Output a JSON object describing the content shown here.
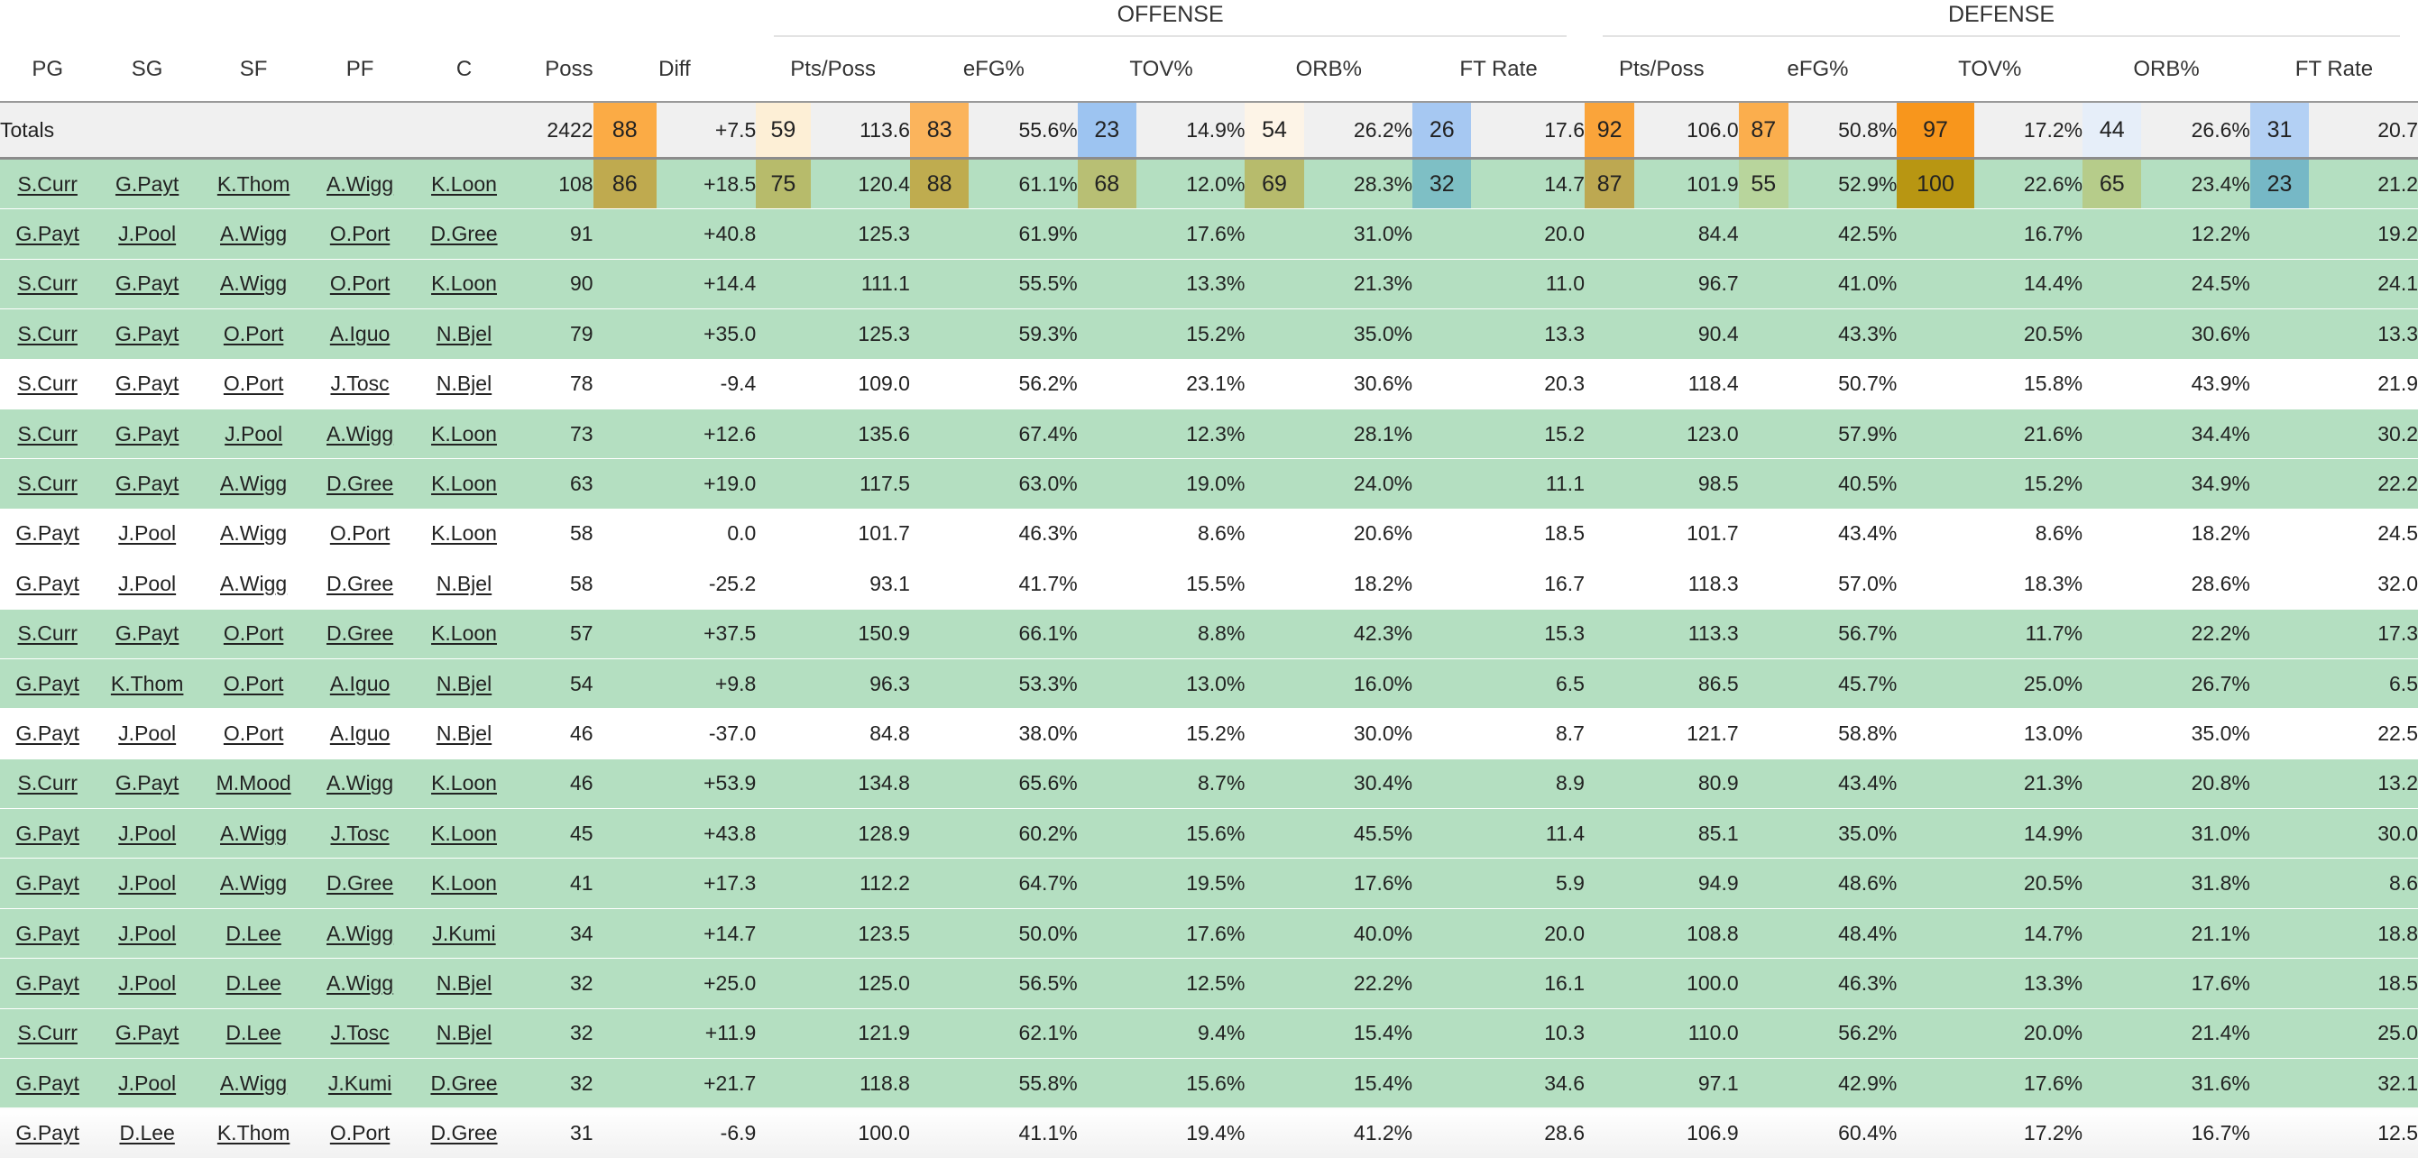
{
  "groups": {
    "offense": "OFFENSE",
    "defense": "DEFENSE"
  },
  "headers": {
    "pg": "PG",
    "sg": "SG",
    "sf": "SF",
    "pf": "PF",
    "c": "C",
    "poss": "Poss",
    "diff": "Diff",
    "off_pts": "Pts/Poss",
    "off_efg": "eFG%",
    "off_tov": "TOV%",
    "off_orb": "ORB%",
    "off_ft": "FT Rate",
    "def_pts": "Pts/Poss",
    "def_efg": "eFG%",
    "def_tov": "TOV%",
    "def_orb": "ORB%",
    "def_ft": "FT Rate"
  },
  "totals": {
    "label": "Totals",
    "poss": "2422",
    "diff_pct": "88",
    "diff": "+7.5",
    "offense": [
      {
        "pct": "59",
        "val": "113.6",
        "color": "#fdefd6"
      },
      {
        "pct": "83",
        "val": "55.6%",
        "color": "#fbb45c"
      },
      {
        "pct": "23",
        "val": "14.9%",
        "color": "#9dc4f1"
      },
      {
        "pct": "54",
        "val": "26.2%",
        "color": "#fdf4e7"
      },
      {
        "pct": "26",
        "val": "17.6",
        "color": "#a6c8f2"
      }
    ],
    "defense": [
      {
        "pct": "92",
        "val": "106.0",
        "color": "#faa43a"
      },
      {
        "pct": "87",
        "val": "50.8%",
        "color": "#fbae4d"
      },
      {
        "pct": "97",
        "val": "17.2%",
        "color": "#f8961c"
      },
      {
        "pct": "44",
        "val": "26.6%",
        "color": "#e6eef9"
      },
      {
        "pct": "31",
        "val": "20.7",
        "color": "#b3d0f4"
      }
    ]
  },
  "colors": {
    "diff_total": "#fbab45",
    "positive_row": "#b4dfc1",
    "neutral_row": "#ffffff",
    "top_diff": "#bfaa4f",
    "top_offense": [
      "#b7bb6b",
      "#bfac4f",
      "#b8bf74",
      "#b7bb6c",
      "#7ebfc5"
    ],
    "top_defense": [
      "#bda851",
      "#b8d59c",
      "#b89612",
      "#b6cc8a",
      "#76b8c6"
    ]
  },
  "rows": [
    {
      "players": [
        "S.Curr",
        "G.Payt",
        "K.Thom",
        "A.Wigg",
        "K.Loon"
      ],
      "poss": "108",
      "diff_pct": "86",
      "diff": "+18.5",
      "positive": true,
      "off_pct": [
        "75",
        "88",
        "68",
        "69",
        "32"
      ],
      "off": [
        "120.4",
        "61.1%",
        "12.0%",
        "28.3%",
        "14.7"
      ],
      "def_pct": [
        "87",
        "55",
        "100",
        "65",
        "23"
      ],
      "def": [
        "101.9",
        "52.9%",
        "22.6%",
        "23.4%",
        "21.2"
      ]
    },
    {
      "players": [
        "G.Payt",
        "J.Pool",
        "A.Wigg",
        "O.Port",
        "D.Gree"
      ],
      "poss": "91",
      "diff": "+40.8",
      "positive": true,
      "off": [
        "125.3",
        "61.9%",
        "17.6%",
        "31.0%",
        "20.0"
      ],
      "def": [
        "84.4",
        "42.5%",
        "16.7%",
        "12.2%",
        "19.2"
      ]
    },
    {
      "players": [
        "S.Curr",
        "G.Payt",
        "A.Wigg",
        "O.Port",
        "K.Loon"
      ],
      "poss": "90",
      "diff": "+14.4",
      "positive": true,
      "off": [
        "111.1",
        "55.5%",
        "13.3%",
        "21.3%",
        "11.0"
      ],
      "def": [
        "96.7",
        "41.0%",
        "14.4%",
        "24.5%",
        "24.1"
      ]
    },
    {
      "players": [
        "S.Curr",
        "G.Payt",
        "O.Port",
        "A.Iguo",
        "N.Bjel"
      ],
      "poss": "79",
      "diff": "+35.0",
      "positive": true,
      "off": [
        "125.3",
        "59.3%",
        "15.2%",
        "35.0%",
        "13.3"
      ],
      "def": [
        "90.4",
        "43.3%",
        "20.5%",
        "30.6%",
        "13.3"
      ]
    },
    {
      "players": [
        "S.Curr",
        "G.Payt",
        "O.Port",
        "J.Tosc",
        "N.Bjel"
      ],
      "poss": "78",
      "diff": "-9.4",
      "positive": false,
      "off": [
        "109.0",
        "56.2%",
        "23.1%",
        "30.6%",
        "20.3"
      ],
      "def": [
        "118.4",
        "50.7%",
        "15.8%",
        "43.9%",
        "21.9"
      ]
    },
    {
      "players": [
        "S.Curr",
        "G.Payt",
        "J.Pool",
        "A.Wigg",
        "K.Loon"
      ],
      "poss": "73",
      "diff": "+12.6",
      "positive": true,
      "off": [
        "135.6",
        "67.4%",
        "12.3%",
        "28.1%",
        "15.2"
      ],
      "def": [
        "123.0",
        "57.9%",
        "21.6%",
        "34.4%",
        "30.2"
      ]
    },
    {
      "players": [
        "S.Curr",
        "G.Payt",
        "A.Wigg",
        "D.Gree",
        "K.Loon"
      ],
      "poss": "63",
      "diff": "+19.0",
      "positive": true,
      "off": [
        "117.5",
        "63.0%",
        "19.0%",
        "24.0%",
        "11.1"
      ],
      "def": [
        "98.5",
        "40.5%",
        "15.2%",
        "34.9%",
        "22.2"
      ]
    },
    {
      "players": [
        "G.Payt",
        "J.Pool",
        "A.Wigg",
        "O.Port",
        "K.Loon"
      ],
      "poss": "58",
      "diff": "0.0",
      "positive": false,
      "off": [
        "101.7",
        "46.3%",
        "8.6%",
        "20.6%",
        "18.5"
      ],
      "def": [
        "101.7",
        "43.4%",
        "8.6%",
        "18.2%",
        "24.5"
      ]
    },
    {
      "players": [
        "G.Payt",
        "J.Pool",
        "A.Wigg",
        "D.Gree",
        "N.Bjel"
      ],
      "poss": "58",
      "diff": "-25.2",
      "positive": false,
      "off": [
        "93.1",
        "41.7%",
        "15.5%",
        "18.2%",
        "16.7"
      ],
      "def": [
        "118.3",
        "57.0%",
        "18.3%",
        "28.6%",
        "32.0"
      ]
    },
    {
      "players": [
        "S.Curr",
        "G.Payt",
        "O.Port",
        "D.Gree",
        "K.Loon"
      ],
      "poss": "57",
      "diff": "+37.5",
      "positive": true,
      "off": [
        "150.9",
        "66.1%",
        "8.8%",
        "42.3%",
        "15.3"
      ],
      "def": [
        "113.3",
        "56.7%",
        "11.7%",
        "22.2%",
        "17.3"
      ]
    },
    {
      "players": [
        "G.Payt",
        "K.Thom",
        "O.Port",
        "A.Iguo",
        "N.Bjel"
      ],
      "poss": "54",
      "diff": "+9.8",
      "positive": true,
      "off": [
        "96.3",
        "53.3%",
        "13.0%",
        "16.0%",
        "6.5"
      ],
      "def": [
        "86.5",
        "45.7%",
        "25.0%",
        "26.7%",
        "6.5"
      ]
    },
    {
      "players": [
        "G.Payt",
        "J.Pool",
        "O.Port",
        "A.Iguo",
        "N.Bjel"
      ],
      "poss": "46",
      "diff": "-37.0",
      "positive": false,
      "off": [
        "84.8",
        "38.0%",
        "15.2%",
        "30.0%",
        "8.7"
      ],
      "def": [
        "121.7",
        "58.8%",
        "13.0%",
        "35.0%",
        "22.5"
      ]
    },
    {
      "players": [
        "S.Curr",
        "G.Payt",
        "M.Mood",
        "A.Wigg",
        "K.Loon"
      ],
      "poss": "46",
      "diff": "+53.9",
      "positive": true,
      "off": [
        "134.8",
        "65.6%",
        "8.7%",
        "30.4%",
        "8.9"
      ],
      "def": [
        "80.9",
        "43.4%",
        "21.3%",
        "20.8%",
        "13.2"
      ]
    },
    {
      "players": [
        "G.Payt",
        "J.Pool",
        "A.Wigg",
        "J.Tosc",
        "K.Loon"
      ],
      "poss": "45",
      "diff": "+43.8",
      "positive": true,
      "off": [
        "128.9",
        "60.2%",
        "15.6%",
        "45.5%",
        "11.4"
      ],
      "def": [
        "85.1",
        "35.0%",
        "14.9%",
        "31.0%",
        "30.0"
      ]
    },
    {
      "players": [
        "G.Payt",
        "J.Pool",
        "A.Wigg",
        "D.Gree",
        "K.Loon"
      ],
      "poss": "41",
      "diff": "+17.3",
      "positive": true,
      "off": [
        "112.2",
        "64.7%",
        "19.5%",
        "17.6%",
        "5.9"
      ],
      "def": [
        "94.9",
        "48.6%",
        "20.5%",
        "31.8%",
        "8.6"
      ]
    },
    {
      "players": [
        "G.Payt",
        "J.Pool",
        "D.Lee",
        "A.Wigg",
        "J.Kumi"
      ],
      "poss": "34",
      "diff": "+14.7",
      "positive": true,
      "off": [
        "123.5",
        "50.0%",
        "17.6%",
        "40.0%",
        "20.0"
      ],
      "def": [
        "108.8",
        "48.4%",
        "14.7%",
        "21.1%",
        "18.8"
      ]
    },
    {
      "players": [
        "G.Payt",
        "J.Pool",
        "D.Lee",
        "A.Wigg",
        "N.Bjel"
      ],
      "poss": "32",
      "diff": "+25.0",
      "positive": true,
      "off": [
        "125.0",
        "56.5%",
        "12.5%",
        "22.2%",
        "16.1"
      ],
      "def": [
        "100.0",
        "46.3%",
        "13.3%",
        "17.6%",
        "18.5"
      ]
    },
    {
      "players": [
        "S.Curr",
        "G.Payt",
        "D.Lee",
        "J.Tosc",
        "N.Bjel"
      ],
      "poss": "32",
      "diff": "+11.9",
      "positive": true,
      "off": [
        "121.9",
        "62.1%",
        "9.4%",
        "15.4%",
        "10.3"
      ],
      "def": [
        "110.0",
        "56.2%",
        "20.0%",
        "21.4%",
        "25.0"
      ]
    },
    {
      "players": [
        "G.Payt",
        "J.Pool",
        "A.Wigg",
        "J.Kumi",
        "D.Gree"
      ],
      "poss": "32",
      "diff": "+21.7",
      "positive": true,
      "off": [
        "118.8",
        "55.8%",
        "15.6%",
        "15.4%",
        "34.6"
      ],
      "def": [
        "97.1",
        "42.9%",
        "17.6%",
        "31.6%",
        "32.1"
      ]
    },
    {
      "players": [
        "G.Payt",
        "D.Lee",
        "K.Thom",
        "O.Port",
        "D.Gree"
      ],
      "poss": "31",
      "diff": "-6.9",
      "positive": false,
      "last": true,
      "off": [
        "100.0",
        "41.1%",
        "19.4%",
        "41.2%",
        "28.6"
      ],
      "def": [
        "106.9",
        "60.4%",
        "17.2%",
        "16.7%",
        "12.5"
      ]
    }
  ]
}
